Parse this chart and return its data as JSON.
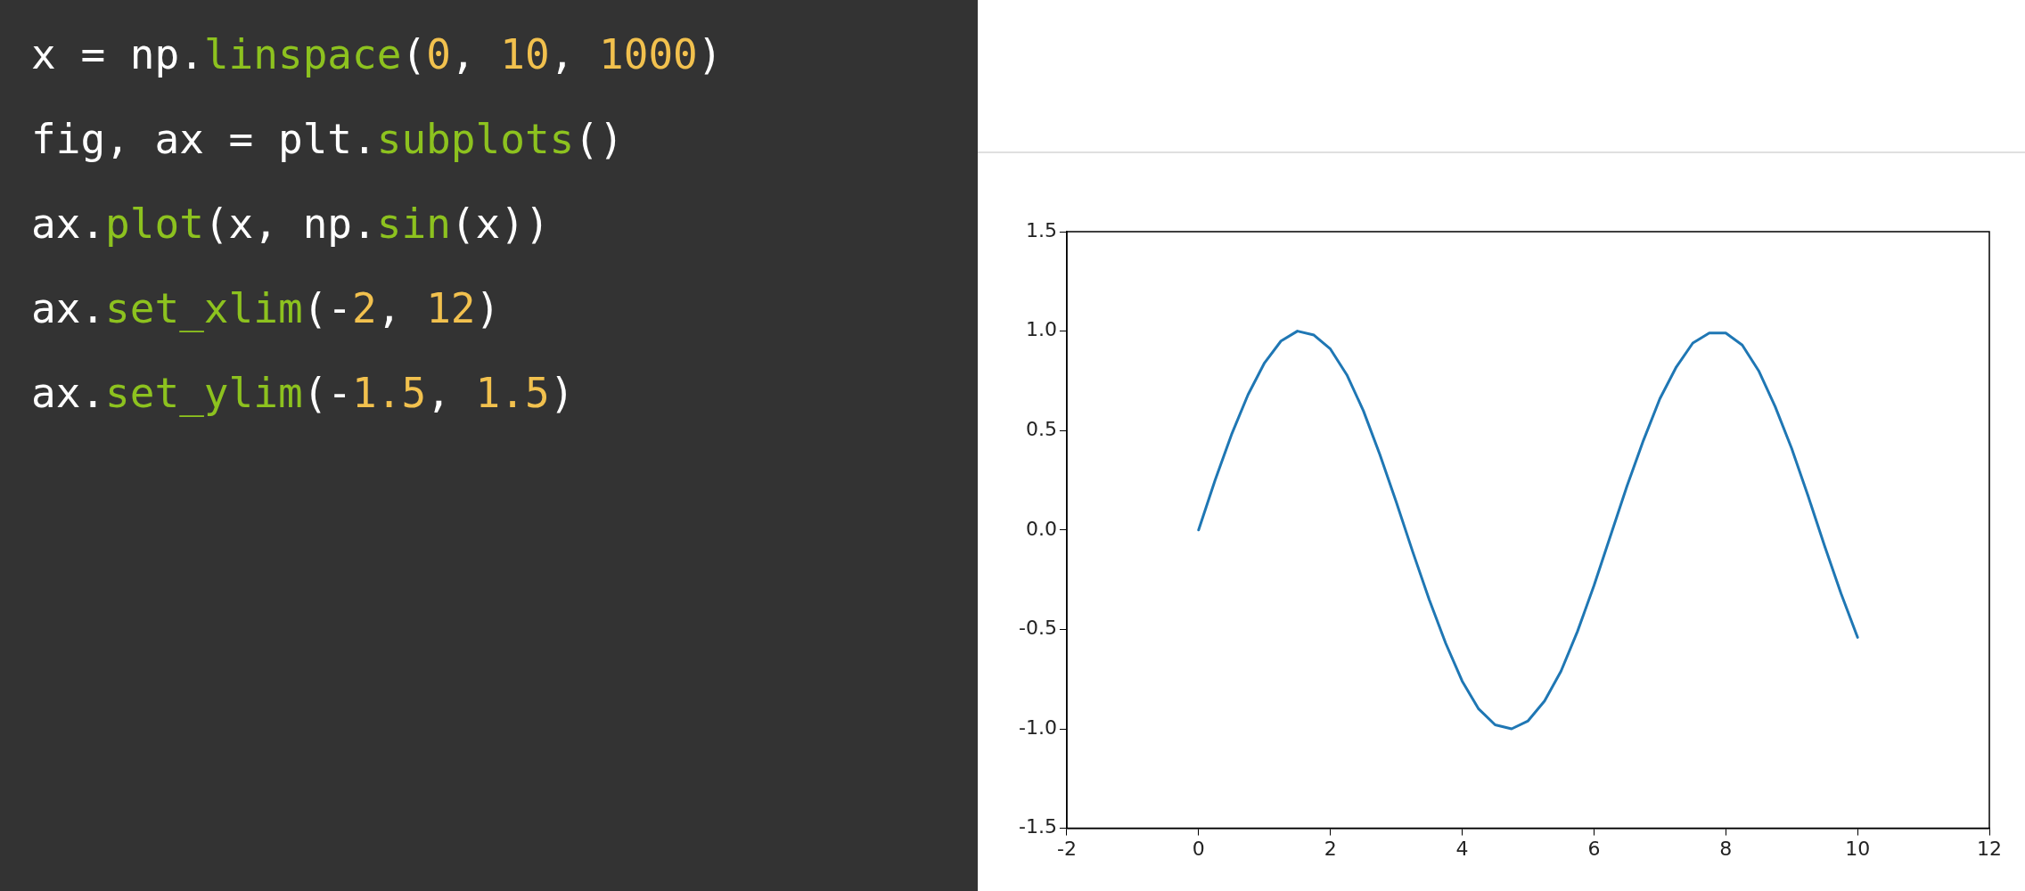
{
  "chart_data": [
    {
      "type": "other",
      "annotations": [
        "x = np.linspace(0, 10, 1000)",
        "fig, ax = plt.subplots()",
        "ax.plot(x, np.sin(x))",
        "ax.set_xlim(-2, 12)",
        "ax.set_ylim(-1.5, 1.5)"
      ]
    },
    {
      "type": "line",
      "x": [
        0,
        0.25,
        0.5,
        0.75,
        1,
        1.25,
        1.5,
        1.75,
        2,
        2.25,
        2.5,
        2.75,
        3,
        3.25,
        3.5,
        3.75,
        4,
        4.25,
        4.5,
        4.75,
        5,
        5.25,
        5.5,
        5.75,
        6,
        6.25,
        6.5,
        6.75,
        7,
        7.25,
        7.5,
        7.75,
        8,
        8.25,
        8.5,
        8.75,
        9,
        9.25,
        9.5,
        9.75,
        10
      ],
      "series": [
        {
          "color": "#1f77b4",
          "values": [
            0,
            0.25,
            0.48,
            0.68,
            0.84,
            0.95,
            1.0,
            0.98,
            0.91,
            0.78,
            0.6,
            0.38,
            0.14,
            -0.11,
            -0.35,
            -0.57,
            -0.76,
            -0.9,
            -0.98,
            -1.0,
            -0.96,
            -0.86,
            -0.71,
            -0.51,
            -0.28,
            -0.03,
            0.22,
            0.45,
            0.66,
            0.82,
            0.94,
            0.99,
            0.99,
            0.93,
            0.8,
            0.62,
            0.41,
            0.17,
            -0.08,
            -0.32,
            -0.54
          ]
        }
      ],
      "xlim": [
        -2,
        12
      ],
      "xticks": [
        -2,
        0,
        2,
        4,
        6,
        8,
        10,
        12
      ],
      "ylim": [
        -1.5,
        1.5
      ],
      "yticks": [
        {
          "value": -1.5,
          "label": "-1.5"
        },
        {
          "value": -1,
          "label": "-1.0"
        },
        {
          "value": -0.5,
          "label": "-0.5"
        },
        {
          "value": 0,
          "label": "0.0"
        },
        {
          "value": 0.5,
          "label": "0.5"
        },
        {
          "value": 1,
          "label": "1.0"
        },
        {
          "value": 1.5,
          "label": "1.5"
        }
      ],
      "grid": false,
      "legend": false,
      "marker": "none",
      "line_style": "solid"
    }
  ]
}
